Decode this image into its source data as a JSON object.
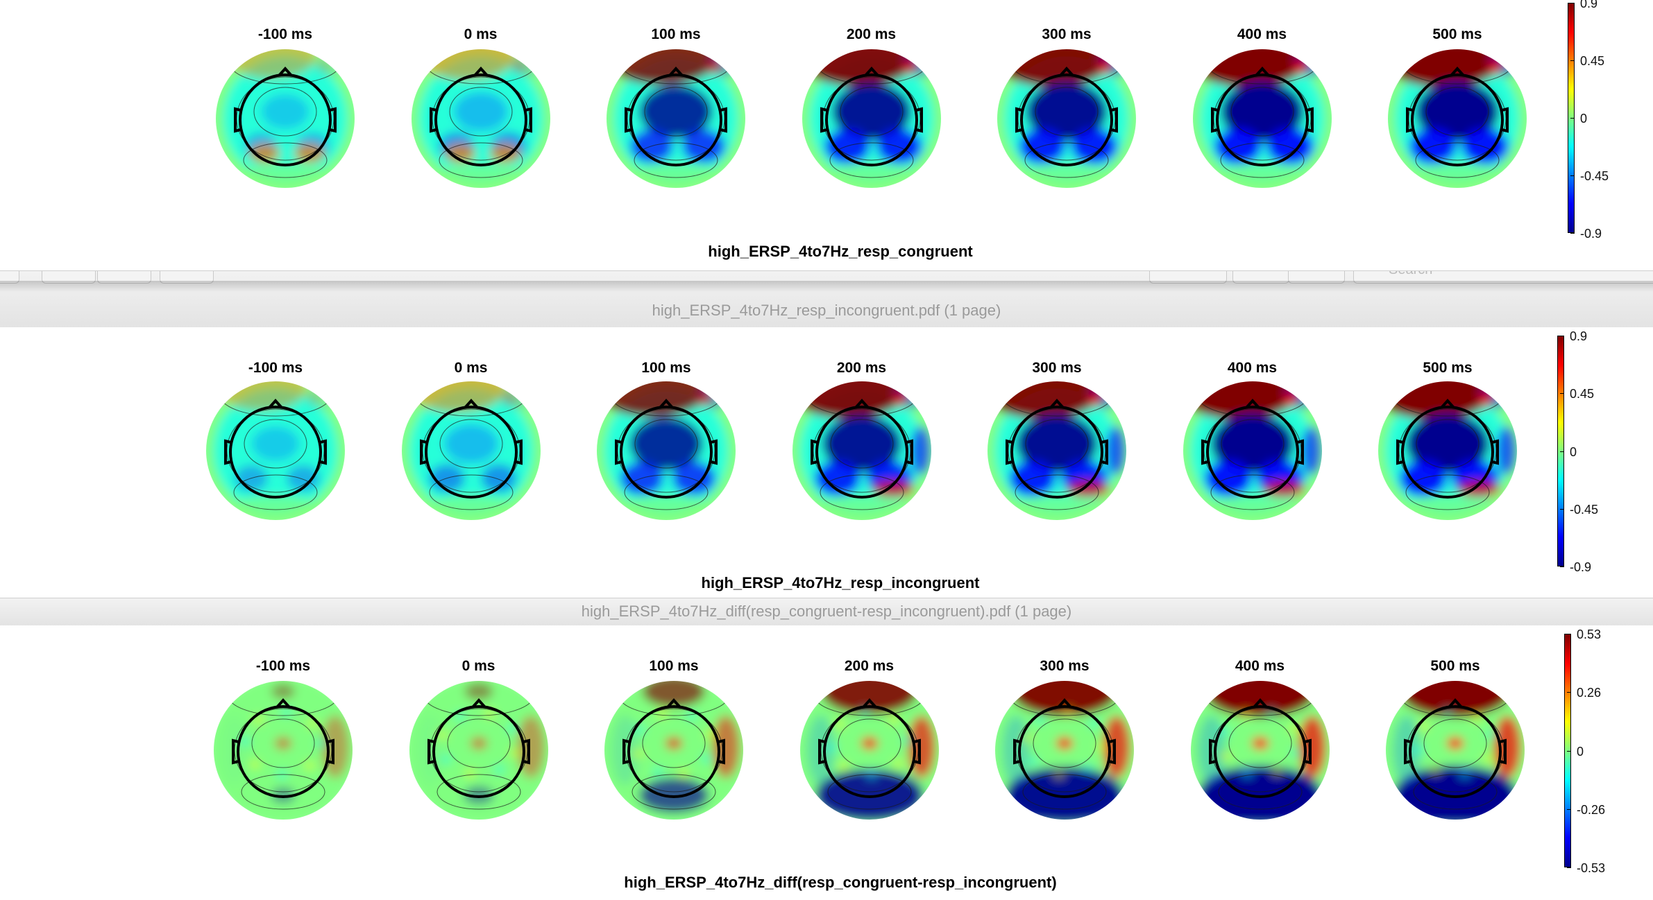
{
  "panels": [
    {
      "title": "high_ERSP_4to7Hz_resp_congruent",
      "times": [
        "-100 ms",
        "0 ms",
        "100 ms",
        "200 ms",
        "300 ms",
        "400 ms",
        "500 ms"
      ],
      "colorbar_ticks": [
        "0.9",
        "0.45",
        "0",
        "-0.45",
        "-0.9"
      ],
      "strength": [
        0.15,
        0.3,
        0.75,
        0.9,
        0.95,
        1.0,
        1.0
      ]
    },
    {
      "title": "high_ERSP_4to7Hz_resp_incongruent",
      "times": [
        "-100 ms",
        "0 ms",
        "100 ms",
        "200 ms",
        "300 ms",
        "400 ms",
        "500 ms"
      ],
      "colorbar_ticks": [
        "0.9",
        "0.45",
        "0",
        "-0.45",
        "-0.9"
      ],
      "strength": [
        0.15,
        0.3,
        0.75,
        0.9,
        0.95,
        1.0,
        1.0
      ]
    },
    {
      "title": "high_ERSP_4to7Hz_diff(resp_congruent-resp_incongruent)",
      "times": [
        "-100 ms",
        "0 ms",
        "100 ms",
        "200 ms",
        "300 ms",
        "400 ms",
        "500 ms"
      ],
      "colorbar_ticks": [
        "0.53",
        "0.26",
        "0",
        "-0.26",
        "-0.53"
      ],
      "strength": [
        0.1,
        0.15,
        0.5,
        0.85,
        0.95,
        1.0,
        1.0
      ]
    }
  ],
  "window_chrome": [
    {
      "document_title": "high_ERSP_4to7Hz_resp_incongruent.pdf (1 page)",
      "search_placeholder": "Search"
    },
    {
      "document_title": "high_ERSP_4to7Hz_diff(resp_congruent-resp_incongruent).pdf (1 page)"
    }
  ],
  "colors": {
    "jet": [
      "#00008f",
      "#0000ff",
      "#0080ff",
      "#00ffff",
      "#80ff80",
      "#ffff00",
      "#ff8000",
      "#ff0000",
      "#800000"
    ],
    "background": "#ffffff",
    "chrome": "#e6e6e6"
  }
}
